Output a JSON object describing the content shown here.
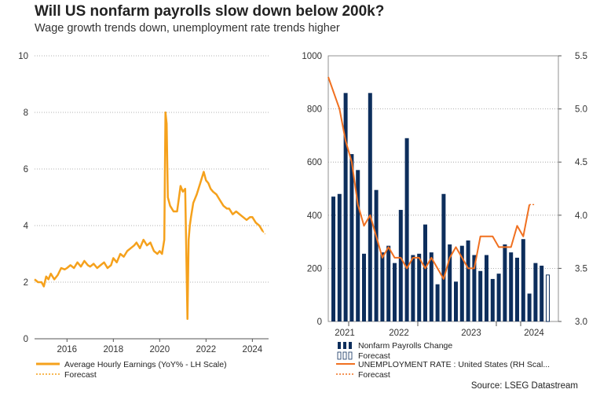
{
  "header": {
    "title": "Will US nonfarm payrolls slow down below 200k?",
    "subtitle": "Wage growth trends down, unemployment rate trends higher"
  },
  "source": "Source: LSEG Datastream",
  "colors": {
    "orange": "#F5A11C",
    "navy": "#0D2E5C",
    "red_orange": "#F07020",
    "grid": "#999999"
  },
  "chart_data": [
    {
      "type": "line",
      "title": "Average Hourly Earnings",
      "ylim": [
        0,
        10
      ],
      "yticks": [
        "0",
        "2",
        "4",
        "6",
        "8",
        "10"
      ],
      "xlim": [
        2014.6,
        2024.7
      ],
      "xticks": [
        2016,
        2018,
        2020,
        2022,
        2024
      ],
      "xtick_labels": [
        "2016",
        "2018",
        "2020",
        "2022",
        "2024"
      ],
      "series": [
        {
          "name": "Average Hourly Earnings (YoY% - LH Scale)",
          "x": [
            2014.6,
            2014.75,
            2014.9,
            2015.0,
            2015.1,
            2015.2,
            2015.3,
            2015.45,
            2015.6,
            2015.75,
            2015.9,
            2016.0,
            2016.15,
            2016.3,
            2016.45,
            2016.6,
            2016.75,
            2016.9,
            2017.0,
            2017.15,
            2017.3,
            2017.45,
            2017.6,
            2017.75,
            2017.9,
            2018.0,
            2018.15,
            2018.3,
            2018.45,
            2018.6,
            2018.75,
            2018.9,
            2019.0,
            2019.15,
            2019.3,
            2019.45,
            2019.6,
            2019.75,
            2019.9,
            2020.0,
            2020.1,
            2020.2,
            2020.25,
            2020.3,
            2020.35,
            2020.45,
            2020.6,
            2020.75,
            2020.9,
            2021.0,
            2021.1,
            2021.2,
            2021.25,
            2021.3,
            2021.35,
            2021.45,
            2021.6,
            2021.75,
            2021.9,
            2022.0,
            2022.1,
            2022.2,
            2022.3,
            2022.45,
            2022.6,
            2022.75,
            2022.9,
            2023.0,
            2023.15,
            2023.3,
            2023.45,
            2023.6,
            2023.75,
            2023.9,
            2024.0,
            2024.15,
            2024.3,
            2024.45
          ],
          "values": [
            2.1,
            2.0,
            2.0,
            1.85,
            2.2,
            2.1,
            2.3,
            2.1,
            2.25,
            2.5,
            2.45,
            2.5,
            2.6,
            2.5,
            2.7,
            2.55,
            2.75,
            2.6,
            2.55,
            2.65,
            2.5,
            2.6,
            2.7,
            2.5,
            2.6,
            2.85,
            2.7,
            3.0,
            2.9,
            3.1,
            3.2,
            3.3,
            3.4,
            3.2,
            3.5,
            3.3,
            3.4,
            3.1,
            3.0,
            3.1,
            3.0,
            3.5,
            8.0,
            7.6,
            5.0,
            4.7,
            4.5,
            4.5,
            5.4,
            5.2,
            5.3,
            0.7,
            3.5,
            4.0,
            4.3,
            4.8,
            5.1,
            5.5,
            5.9,
            5.6,
            5.5,
            5.3,
            5.2,
            5.1,
            4.9,
            4.7,
            4.6,
            4.6,
            4.4,
            4.5,
            4.4,
            4.3,
            4.2,
            4.3,
            4.3,
            4.1,
            4.0,
            3.8
          ]
        },
        {
          "name": "Forecast",
          "x": [
            2024.45,
            2024.55
          ],
          "values": [
            3.8,
            3.7
          ]
        }
      ]
    },
    {
      "type": "bar",
      "title": "Nonfarm Payrolls & Unemployment Rate",
      "ylim": [
        0,
        1000
      ],
      "yticks": [
        "0",
        "200",
        "400",
        "600",
        "800",
        "1000"
      ],
      "y2lim": [
        3.0,
        5.5
      ],
      "y2ticks": [
        "3.0",
        "3.5",
        "4.0",
        "4.5",
        "5.0",
        "5.5"
      ],
      "xtick_labels": [
        "2021",
        "2022",
        "2023",
        "2024"
      ],
      "series": [
        {
          "name": "Nonfarm Payrolls Change",
          "values": [
            470,
            480,
            860,
            630,
            570,
            255,
            860,
            495,
            260,
            285,
            220,
            420,
            690,
            250,
            255,
            365,
            260,
            140,
            480,
            290,
            150,
            285,
            305,
            250,
            190,
            250,
            160,
            180,
            290,
            260,
            240,
            310,
            105
          ]
        },
        {
          "name": "Forecast",
          "values": [
            220,
            210,
            175
          ]
        },
        {
          "name": "UNEMPLOYMENT RATE : United States (RH Scal...",
          "values": [
            5.3,
            5.0,
            4.7,
            4.5,
            4.1,
            3.9,
            4.0,
            3.8,
            3.6,
            3.7,
            3.6,
            3.6,
            3.5,
            3.6,
            3.6,
            3.5,
            3.6,
            3.5,
            3.4,
            3.6,
            3.7,
            3.6,
            3.5,
            3.5,
            3.8,
            3.8,
            3.8,
            3.7,
            3.7,
            3.7,
            3.9,
            3.8,
            4.1
          ]
        },
        {
          "name": "Forecast",
          "values": [
            4.1,
            4.1
          ]
        }
      ]
    }
  ]
}
